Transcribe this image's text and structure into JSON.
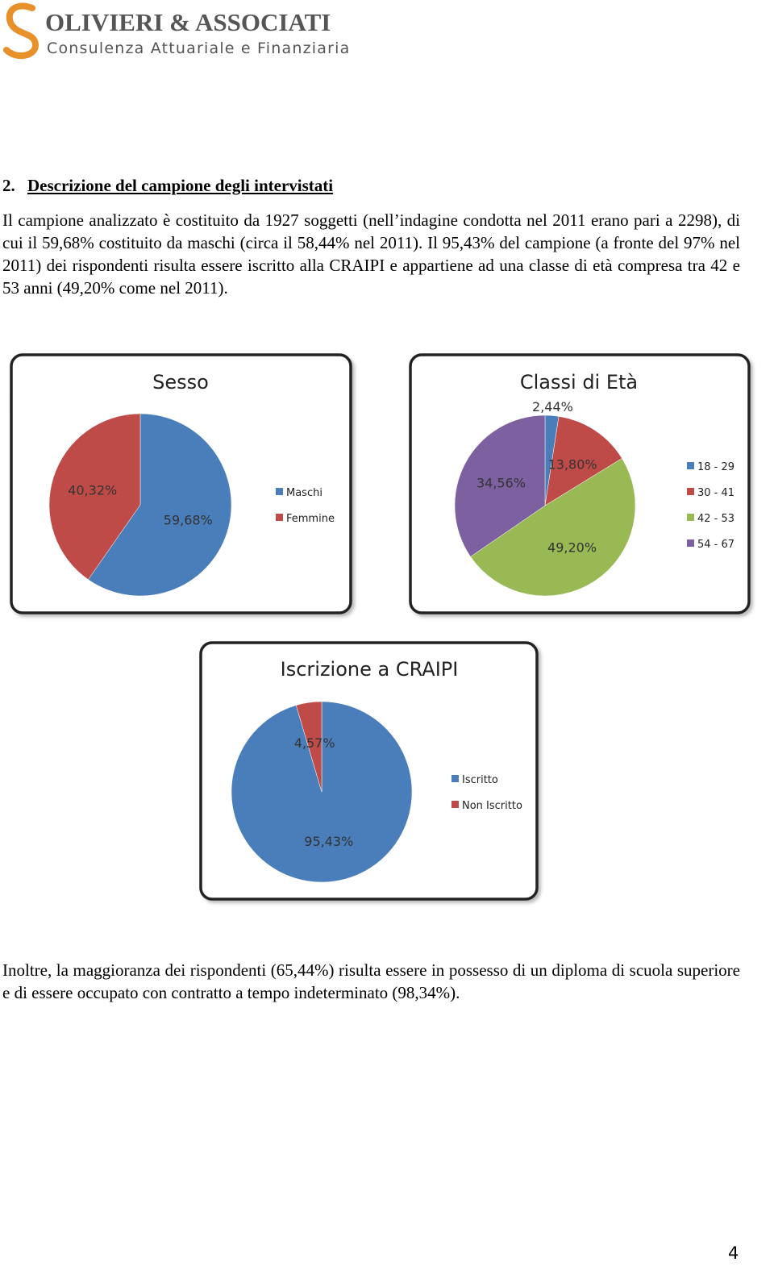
{
  "header": {
    "company": "Olivieri & Associati",
    "tagline": "Consulenza Attuariale e Finanziaria"
  },
  "section": {
    "number": "2.",
    "title": "Descrizione del campione degli intervistati"
  },
  "paragraphs": [
    "Il campione analizzato è costituito da 1927 soggetti (nell’indagine condotta nel 2011 erano pari a 2298), di cui il 59,68% costituito da maschi  (circa il 58,44% nel 2011). Il 95,43% del campione (a fronte del 97% nel 2011) dei rispondenti risulta essere iscritto alla CRAIPI e appartiene ad una classe di età compresa tra 42 e 53 anni (49,20% come nel 2011).",
    "Inoltre, la maggioranza dei rispondenti (65,44%) risulta essere in possesso di un diploma di scuola superiore e di essere occupato con contratto a tempo indeterminato (98,34%)."
  ],
  "chart_data": [
    {
      "type": "pie",
      "title": "Sesso",
      "categories": [
        "Maschi",
        "Femmine"
      ],
      "values": [
        59.68,
        40.32
      ],
      "value_labels": [
        "59,68%",
        "40,32%"
      ],
      "colors": [
        "#4a7ebb",
        "#be4b48"
      ]
    },
    {
      "type": "pie",
      "title": "Classi di Età",
      "categories": [
        "18 - 29",
        "30 - 41",
        "42 - 53",
        "54 - 67"
      ],
      "values": [
        2.44,
        13.8,
        49.2,
        34.56
      ],
      "value_labels": [
        "2,44%",
        "13,80%",
        "49,20%",
        "34,56%"
      ],
      "colors": [
        "#4a7ebb",
        "#be4b48",
        "#98b954",
        "#7d60a0"
      ]
    },
    {
      "type": "pie",
      "title": "Iscrizione a CRAIPI",
      "categories": [
        "Iscritto",
        "Non Iscritto"
      ],
      "values": [
        95.43,
        4.57
      ],
      "value_labels": [
        "95,43%",
        "4,57%"
      ],
      "colors": [
        "#4a7ebb",
        "#be4b48"
      ]
    }
  ],
  "page_number": "4"
}
